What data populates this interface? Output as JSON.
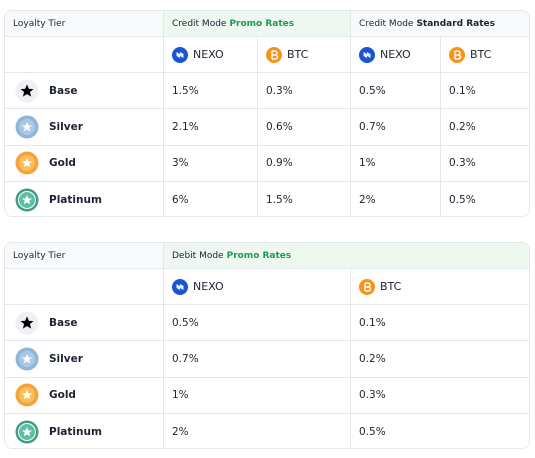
{
  "tables": [
    {
      "tier_header": "Loyalty Tier",
      "groups": [
        {
          "mode": "Credit Mode",
          "rate": "Promo Rates"
        },
        {
          "mode": "Credit Mode",
          "rate": "Standard Rates"
        }
      ],
      "assets": [
        "NEXO",
        "BTC",
        "NEXO",
        "BTC"
      ],
      "rows": [
        {
          "tier": "Base",
          "rates": [
            "1.5%",
            "0.3%",
            "0.5%",
            "0.1%"
          ]
        },
        {
          "tier": "Silver",
          "rates": [
            "2.1%",
            "0.6%",
            "0.7%",
            "0.2%"
          ]
        },
        {
          "tier": "Gold",
          "rates": [
            "3%",
            "0.9%",
            "1%",
            "0.3%"
          ]
        },
        {
          "tier": "Platinum",
          "rates": [
            "6%",
            "1.5%",
            "2%",
            "0.5%"
          ]
        }
      ]
    },
    {
      "tier_header": "Loyalty Tier",
      "groups": [
        {
          "mode": "Debit Mode",
          "rate": "Promo Rates"
        }
      ],
      "assets": [
        "NEXO",
        "BTC"
      ],
      "rows": [
        {
          "tier": "Base",
          "rates": [
            "0.5%",
            "0.1%"
          ]
        },
        {
          "tier": "Silver",
          "rates": [
            "0.7%",
            "0.2%"
          ]
        },
        {
          "tier": "Gold",
          "rates": [
            "1%",
            "0.3%"
          ]
        },
        {
          "tier": "Platinum",
          "rates": [
            "2%",
            "0.5%"
          ]
        }
      ]
    }
  ]
}
